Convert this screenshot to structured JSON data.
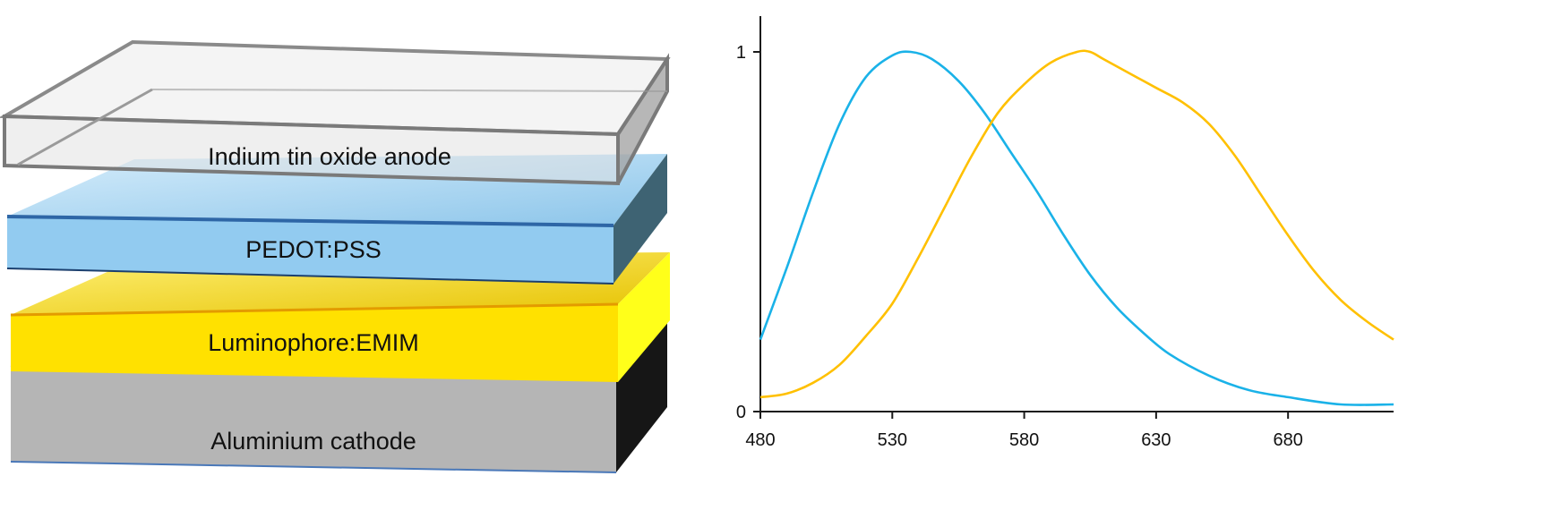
{
  "device_stack": {
    "layers": [
      {
        "label": "Indium tin oxide anode",
        "color": "#d9d9d9"
      },
      {
        "label": "PEDOT:PSS",
        "color": "#8fc8ee"
      },
      {
        "label": "Luminophore:EMIM",
        "color": "#ffe100"
      },
      {
        "label": "Aluminium cathode",
        "color": "#b5b5b5"
      }
    ]
  },
  "chart_data": {
    "type": "line",
    "title": "",
    "xlabel": "",
    "ylabel": "",
    "xlim": [
      480,
      720
    ],
    "ylim": [
      0,
      1
    ],
    "x_ticks": [
      480,
      530,
      580,
      630,
      680
    ],
    "x_tick_labels": [
      "480",
      "530",
      "580",
      "630",
      "680"
    ],
    "y_ticks": [
      0,
      1
    ],
    "y_tick_labels": [
      "0",
      "1"
    ],
    "grid": false,
    "legend": "none",
    "series": [
      {
        "color": "#1ab2e8",
        "x": [
          480,
          490,
          500,
          510,
          520,
          530,
          537,
          545,
          555,
          565,
          575,
          585,
          595,
          605,
          615,
          625,
          635,
          650,
          665,
          680,
          700,
          720
        ],
        "y": [
          0.2,
          0.4,
          0.61,
          0.8,
          0.93,
          0.99,
          1.0,
          0.98,
          0.92,
          0.83,
          0.72,
          0.61,
          0.49,
          0.38,
          0.29,
          0.22,
          0.16,
          0.1,
          0.06,
          0.04,
          0.02,
          0.02
        ]
      },
      {
        "color": "#ffc000",
        "x": [
          480,
          490,
          500,
          510,
          520,
          530,
          540,
          550,
          560,
          570,
          580,
          590,
          600,
          605,
          610,
          620,
          630,
          640,
          650,
          660,
          670,
          680,
          690,
          700,
          710,
          720
        ],
        "y": [
          0.04,
          0.05,
          0.08,
          0.13,
          0.21,
          0.3,
          0.43,
          0.57,
          0.71,
          0.83,
          0.91,
          0.97,
          1.0,
          1.0,
          0.98,
          0.94,
          0.9,
          0.86,
          0.8,
          0.71,
          0.6,
          0.49,
          0.39,
          0.31,
          0.25,
          0.2
        ]
      }
    ]
  }
}
